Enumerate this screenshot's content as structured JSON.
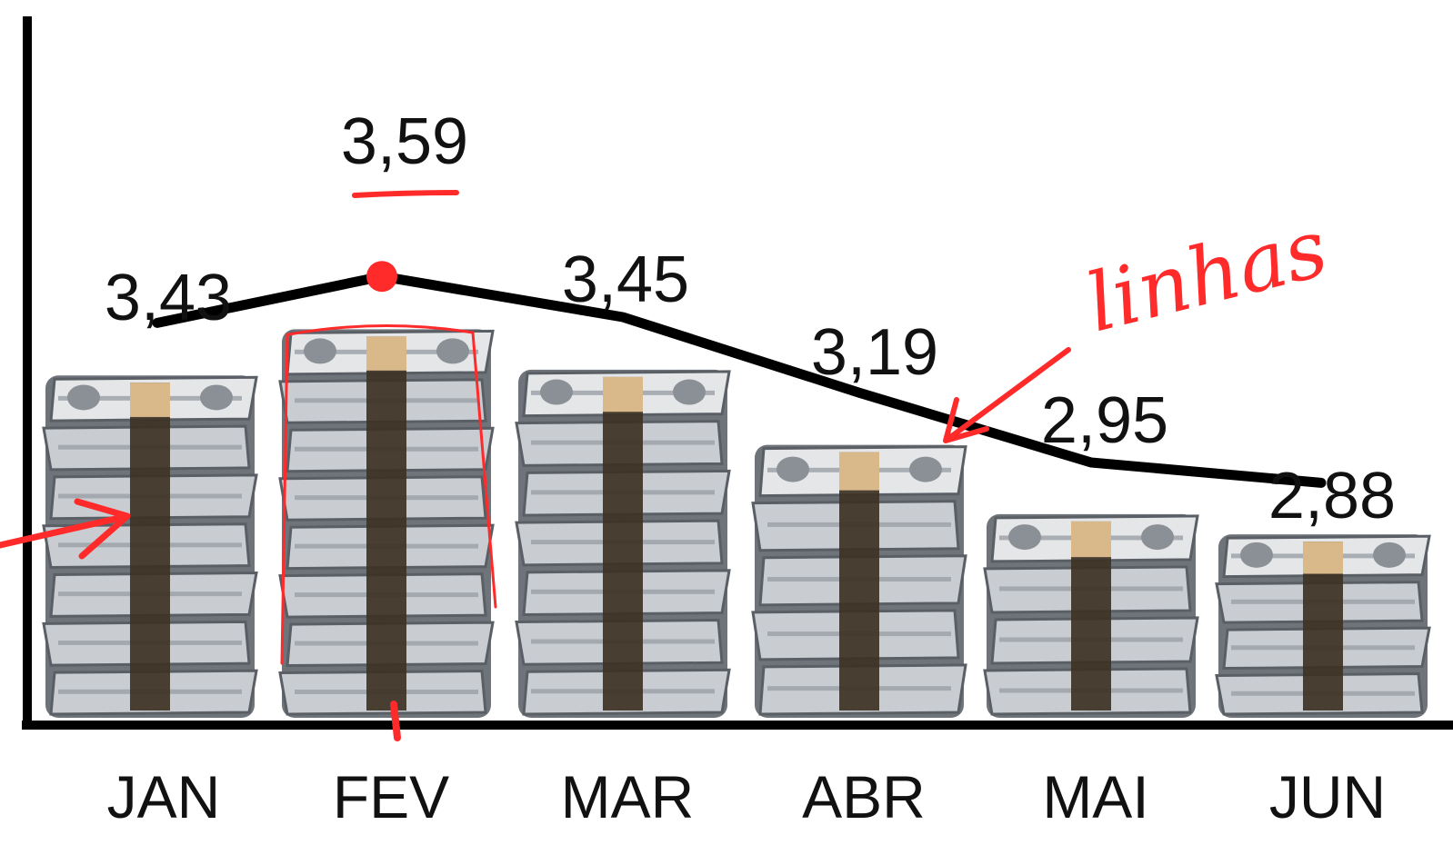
{
  "colors": {
    "axis": "#000000",
    "line": "#000000",
    "annotation": "#ff2a2a",
    "bill_light": "#c9cdd1",
    "bill_dark": "#6f747a",
    "band": "#3d3324",
    "band_top": "#d9b88a"
  },
  "icons": {
    "bar_mark": "money-stack-icon",
    "arrow": "red-arrow-icon"
  },
  "chart_data": {
    "type": "bar",
    "categories": [
      "JAN",
      "FEV",
      "MAR",
      "ABR",
      "MAI",
      "JUN"
    ],
    "values": [
      3.43,
      3.59,
      3.45,
      3.19,
      2.95,
      2.88
    ],
    "value_labels": [
      "3,43",
      "3,59",
      "3,45",
      "3,19",
      "2,95",
      "2,88"
    ],
    "overlay_line": true,
    "ylim": [
      0,
      3.8
    ],
    "grid": false,
    "title": "",
    "xlabel": "",
    "ylabel": "",
    "annotations": {
      "handwritten_note": "linhas"
    }
  }
}
